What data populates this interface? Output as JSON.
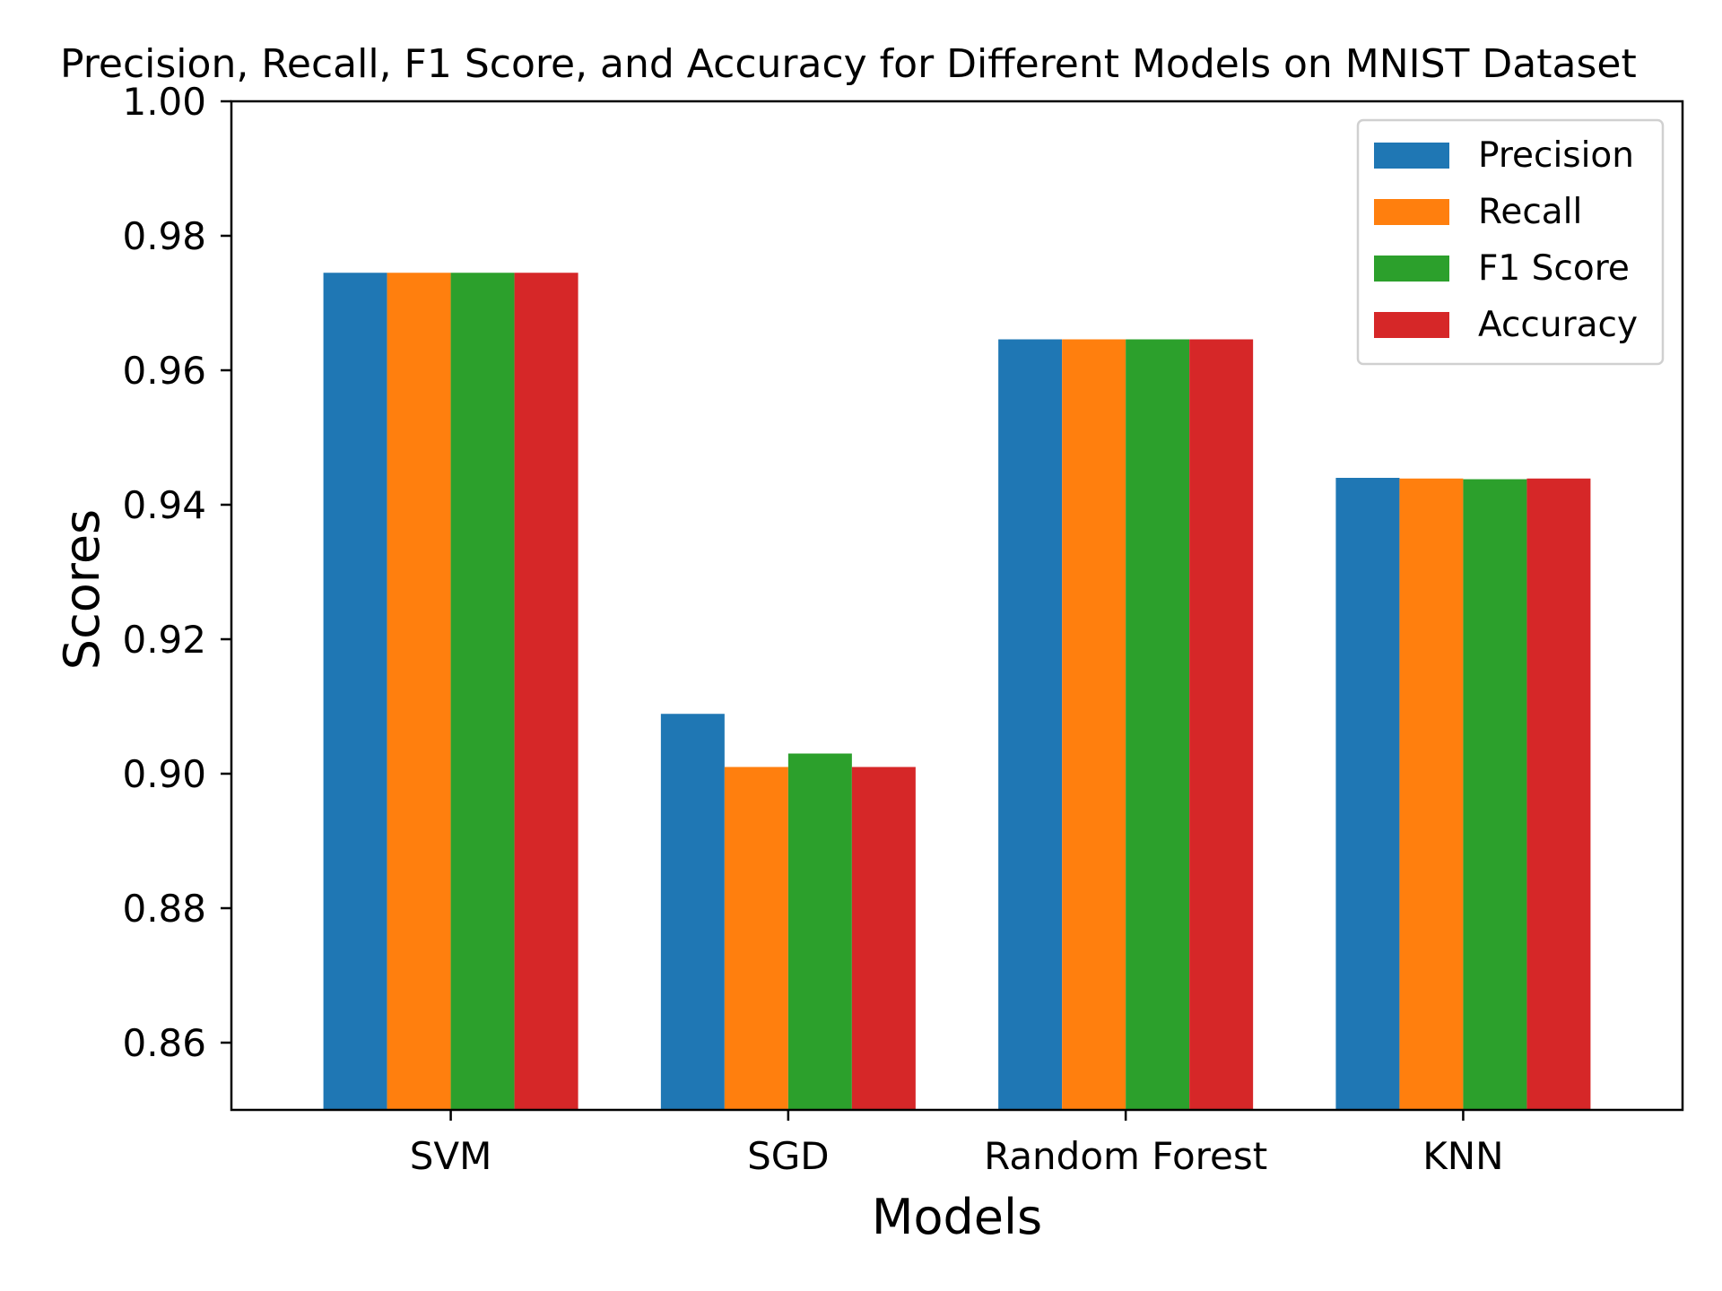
{
  "chart_data": {
    "type": "bar",
    "title": "Precision, Recall, F1 Score, and Accuracy for Different Models on MNIST Dataset",
    "xlabel": "Models",
    "ylabel": "Scores",
    "categories": [
      "SVM",
      "SGD",
      "Random Forest",
      "KNN"
    ],
    "series": [
      {
        "name": "Precision",
        "color": "#1f77b4",
        "values": [
          0.9745,
          0.9089,
          0.9646,
          0.944
        ]
      },
      {
        "name": "Recall",
        "color": "#ff7f0e",
        "values": [
          0.9745,
          0.901,
          0.9646,
          0.9439
        ]
      },
      {
        "name": "F1 Score",
        "color": "#2ca02c",
        "values": [
          0.9745,
          0.903,
          0.9646,
          0.9438
        ]
      },
      {
        "name": "Accuracy",
        "color": "#d62728",
        "values": [
          0.9745,
          0.901,
          0.9646,
          0.9439
        ]
      }
    ],
    "ylim": [
      0.85,
      1.0
    ],
    "yticks": [
      "0.86",
      "0.88",
      "0.90",
      "0.92",
      "0.94",
      "0.96",
      "0.98",
      "1.00"
    ],
    "grid": false,
    "legend_position": "top-right"
  }
}
